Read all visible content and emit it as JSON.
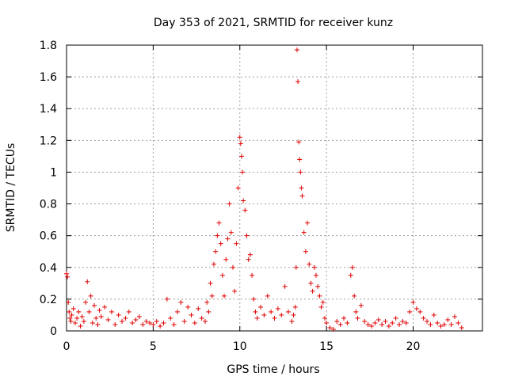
{
  "chart_data": {
    "type": "scatter",
    "title": "Day 353 of 2021, SRMTID for receiver kunz",
    "xlabel": "GPS time / hours",
    "ylabel": "SRMTID / TECUs",
    "xlim": [
      0,
      24
    ],
    "ylim": [
      0,
      1.8
    ],
    "xticks": [
      0,
      5,
      10,
      15,
      20
    ],
    "xtick_labels": [
      "0",
      "5",
      "10",
      "15",
      "20"
    ],
    "yticks": [
      0,
      0.2,
      0.4,
      0.6,
      0.8,
      1.0,
      1.2,
      1.4,
      1.6,
      1.8
    ],
    "ytick_labels": [
      "0",
      "0.2",
      "0.4",
      "0.6",
      "0.8",
      "1",
      "1.2",
      "1.4",
      "1.6",
      "1.8"
    ],
    "grid": true,
    "marker": "plus",
    "color": "#e00000",
    "series": [
      {
        "name": "SRMTID",
        "x": [
          0.0,
          0.05,
          0.1,
          0.15,
          0.2,
          0.25,
          0.3,
          0.4,
          0.5,
          0.6,
          0.7,
          0.8,
          0.9,
          1.0,
          1.1,
          1.2,
          1.3,
          1.4,
          1.5,
          1.6,
          1.7,
          1.8,
          1.9,
          2.0,
          2.2,
          2.4,
          2.6,
          2.8,
          3.0,
          3.2,
          3.4,
          3.6,
          3.8,
          4.0,
          4.2,
          4.4,
          4.6,
          4.8,
          5.0,
          5.2,
          5.4,
          5.6,
          5.8,
          6.0,
          6.2,
          6.4,
          6.6,
          6.8,
          7.0,
          7.2,
          7.4,
          7.6,
          7.8,
          8.0,
          8.1,
          8.2,
          8.3,
          8.4,
          8.5,
          8.6,
          8.7,
          8.8,
          8.9,
          9.0,
          9.1,
          9.2,
          9.3,
          9.4,
          9.5,
          9.6,
          9.7,
          9.8,
          9.9,
          10.0,
          10.05,
          10.1,
          10.15,
          10.2,
          10.3,
          10.4,
          10.5,
          10.6,
          10.7,
          10.8,
          10.9,
          11.0,
          11.2,
          11.4,
          11.6,
          11.8,
          12.0,
          12.2,
          12.4,
          12.6,
          12.8,
          13.0,
          13.1,
          13.2,
          13.25,
          13.3,
          13.35,
          13.4,
          13.45,
          13.5,
          13.55,
          13.6,
          13.7,
          13.8,
          13.9,
          14.0,
          14.1,
          14.2,
          14.3,
          14.4,
          14.5,
          14.6,
          14.7,
          14.8,
          14.9,
          15.0,
          15.2,
          15.4,
          15.6,
          15.8,
          16.0,
          16.2,
          16.4,
          16.5,
          16.6,
          16.7,
          16.8,
          17.0,
          17.2,
          17.4,
          17.6,
          17.8,
          18.0,
          18.2,
          18.4,
          18.6,
          18.8,
          19.0,
          19.2,
          19.4,
          19.6,
          19.8,
          20.0,
          20.2,
          20.4,
          20.6,
          20.8,
          21.0,
          21.2,
          21.4,
          21.6,
          21.8,
          22.0,
          22.2,
          22.4,
          22.6,
          22.8
        ],
        "y": [
          0.36,
          0.34,
          0.18,
          0.12,
          0.08,
          0.06,
          0.1,
          0.14,
          0.05,
          0.08,
          0.12,
          0.03,
          0.09,
          0.06,
          0.18,
          0.31,
          0.12,
          0.22,
          0.05,
          0.16,
          0.08,
          0.04,
          0.13,
          0.09,
          0.15,
          0.07,
          0.12,
          0.04,
          0.1,
          0.06,
          0.08,
          0.12,
          0.05,
          0.07,
          0.09,
          0.04,
          0.06,
          0.05,
          0.04,
          0.06,
          0.03,
          0.05,
          0.2,
          0.08,
          0.04,
          0.12,
          0.18,
          0.06,
          0.15,
          0.1,
          0.05,
          0.14,
          0.08,
          0.06,
          0.18,
          0.12,
          0.3,
          0.22,
          0.42,
          0.5,
          0.6,
          0.68,
          0.55,
          0.35,
          0.22,
          0.45,
          0.58,
          0.8,
          0.62,
          0.4,
          0.25,
          0.55,
          0.9,
          1.22,
          1.18,
          1.1,
          1.0,
          0.82,
          0.76,
          0.6,
          0.45,
          0.48,
          0.35,
          0.2,
          0.12,
          0.08,
          0.15,
          0.1,
          0.22,
          0.12,
          0.08,
          0.14,
          0.1,
          0.28,
          0.12,
          0.06,
          0.1,
          0.15,
          0.4,
          1.77,
          1.57,
          1.19,
          1.08,
          1.0,
          0.9,
          0.85,
          0.62,
          0.5,
          0.68,
          0.42,
          0.3,
          0.25,
          0.4,
          0.35,
          0.28,
          0.22,
          0.15,
          0.18,
          0.08,
          0.05,
          0.02,
          0.01,
          0.06,
          0.04,
          0.08,
          0.05,
          0.35,
          0.4,
          0.22,
          0.12,
          0.08,
          0.16,
          0.06,
          0.04,
          0.03,
          0.05,
          0.07,
          0.04,
          0.06,
          0.03,
          0.05,
          0.08,
          0.04,
          0.06,
          0.05,
          0.12,
          0.18,
          0.14,
          0.12,
          0.08,
          0.06,
          0.04,
          0.1,
          0.05,
          0.03,
          0.04,
          0.07,
          0.04,
          0.09,
          0.05,
          0.02
        ]
      }
    ]
  }
}
